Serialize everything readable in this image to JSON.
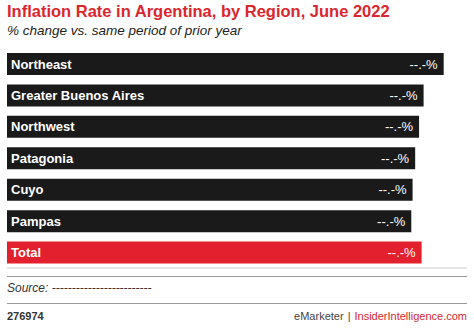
{
  "chart_data": {
    "type": "bar",
    "orientation": "horizontal",
    "title": "Inflation Rate in Argentina, by Region, June 2022",
    "subtitle": "% change vs. same period of prior year",
    "categories": [
      "Northeast",
      "Greater Buenos Aires",
      "Northwest",
      "Patagonia",
      "Cuyo",
      "Pampas",
      "Total"
    ],
    "values": [
      67.4,
      64.3,
      63.6,
      63.0,
      62.6,
      62.4,
      64.0
    ],
    "value_labels": [
      "--.-%",
      "--.-%",
      "--.-%",
      "--.-%",
      "--.-%",
      "--.-%",
      "--.-%"
    ],
    "data_labels": true,
    "colors": [
      "#1a1a1a",
      "#1a1a1a",
      "#1a1a1a",
      "#1a1a1a",
      "#1a1a1a",
      "#1a1a1a",
      "#e3202e"
    ],
    "xlim": [
      0,
      71
    ],
    "tick_labels": false,
    "grid": false,
    "source": "Source: -------------------------",
    "chart_id": "276974",
    "brand": "eMarketer",
    "separator": "|",
    "site": "InsiderIntelligence.com"
  }
}
